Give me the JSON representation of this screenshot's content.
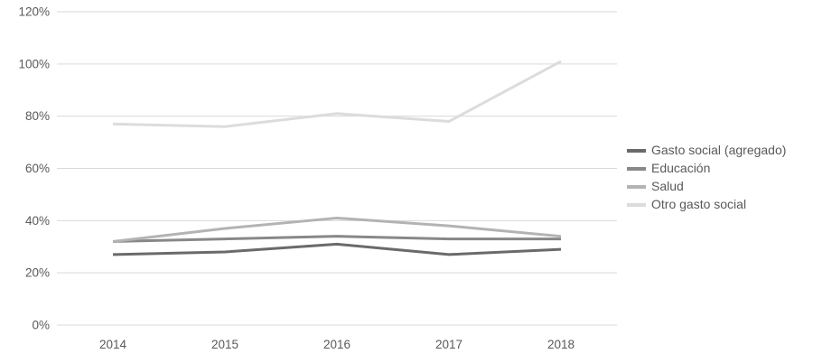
{
  "chart_data": {
    "type": "line",
    "title": "",
    "xlabel": "",
    "ylabel": "",
    "categories": [
      "2014",
      "2015",
      "2016",
      "2017",
      "2018"
    ],
    "series": [
      {
        "name": "Gasto social (agregado)",
        "values": [
          27,
          28,
          31,
          27,
          29
        ],
        "color": "#6a6a6a"
      },
      {
        "name": "Educación",
        "values": [
          32,
          33,
          34,
          33,
          33
        ],
        "color": "#888888"
      },
      {
        "name": "Salud",
        "values": [
          32,
          37,
          41,
          38,
          34
        ],
        "color": "#b3b3b3"
      },
      {
        "name": "Otro gasto social",
        "values": [
          77,
          76,
          81,
          78,
          101
        ],
        "color": "#dcdcdc"
      }
    ],
    "ylim": [
      0,
      120
    ],
    "ytick_step": 20,
    "ytick_suffix": "%",
    "grid": true,
    "legend_position": "right",
    "axis_text_color": "#595959",
    "gridline_color": "#d9d9d9"
  }
}
